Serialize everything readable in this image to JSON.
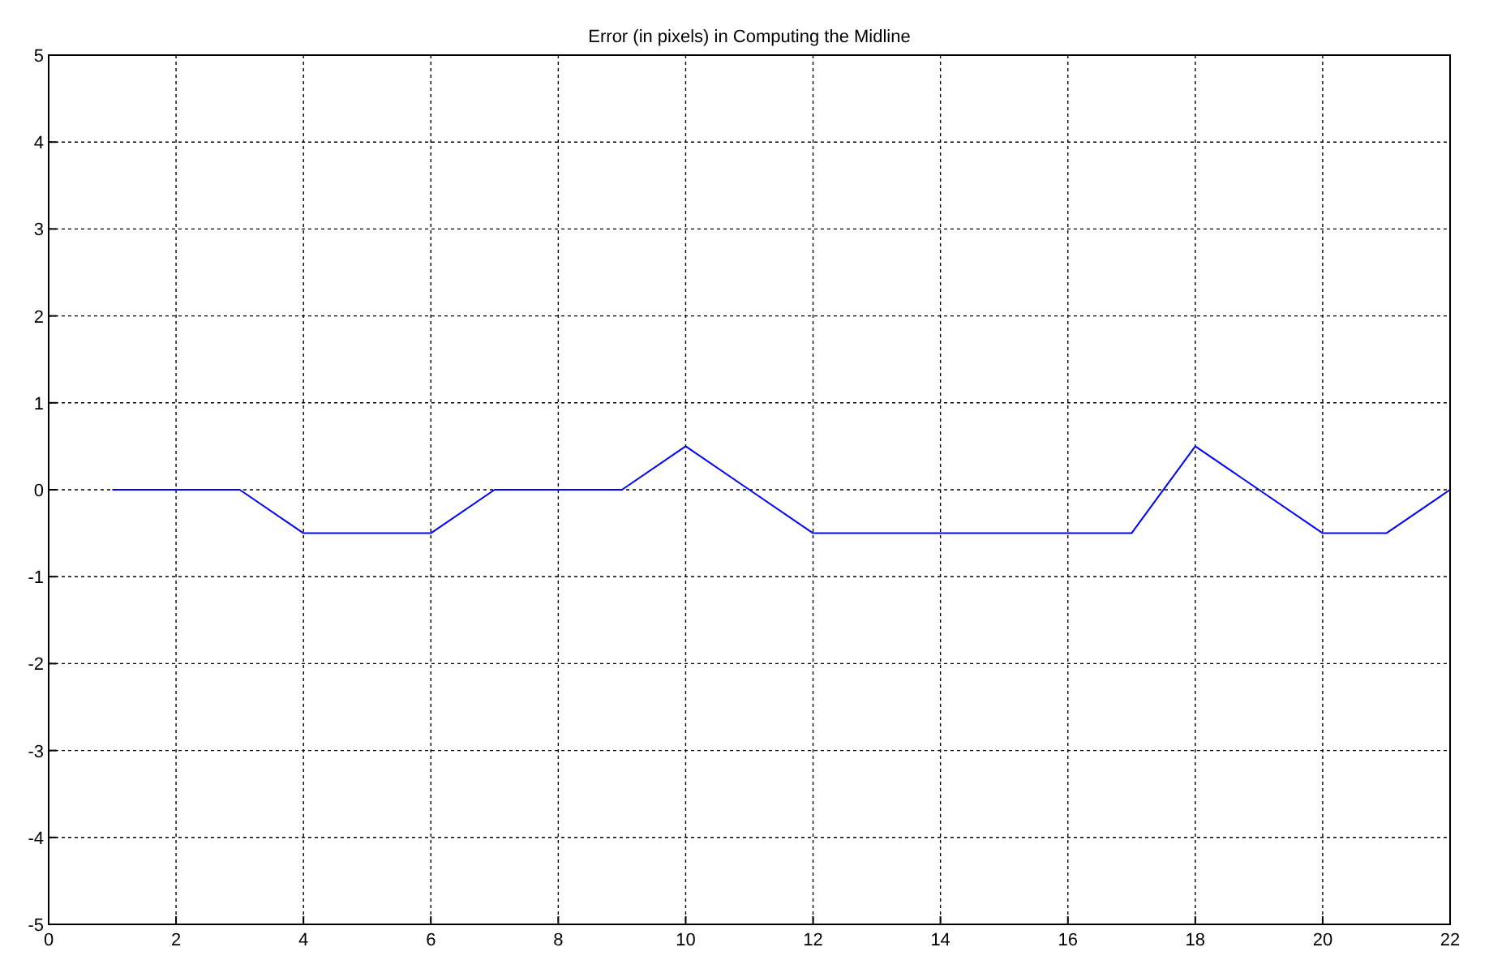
{
  "chart_data": {
    "type": "line",
    "title": "Error (in pixels) in Computing the Midline",
    "x": [
      1,
      2,
      3,
      4,
      5,
      6,
      7,
      8,
      9,
      10,
      11,
      12,
      13,
      14,
      15,
      16,
      17,
      18,
      19,
      20,
      21,
      22
    ],
    "series": [
      {
        "color": "#0000ff",
        "values": [
          0,
          0,
          0,
          -0.5,
          -0.5,
          -0.5,
          0,
          0,
          0,
          0.5,
          0,
          -0.5,
          -0.5,
          -0.5,
          -0.5,
          -0.5,
          -0.5,
          0.5,
          0,
          -0.5,
          -0.5,
          0
        ]
      }
    ],
    "xlim": [
      0,
      22
    ],
    "xticks": [
      0,
      2,
      4,
      6,
      8,
      10,
      12,
      14,
      16,
      18,
      20,
      22
    ],
    "ylim": [
      -5,
      5
    ],
    "yticks": [
      -5,
      -4,
      -3,
      -2,
      -1,
      0,
      1,
      2,
      3,
      4,
      5
    ],
    "grid": true,
    "marker": "none",
    "line_style": "solid"
  }
}
